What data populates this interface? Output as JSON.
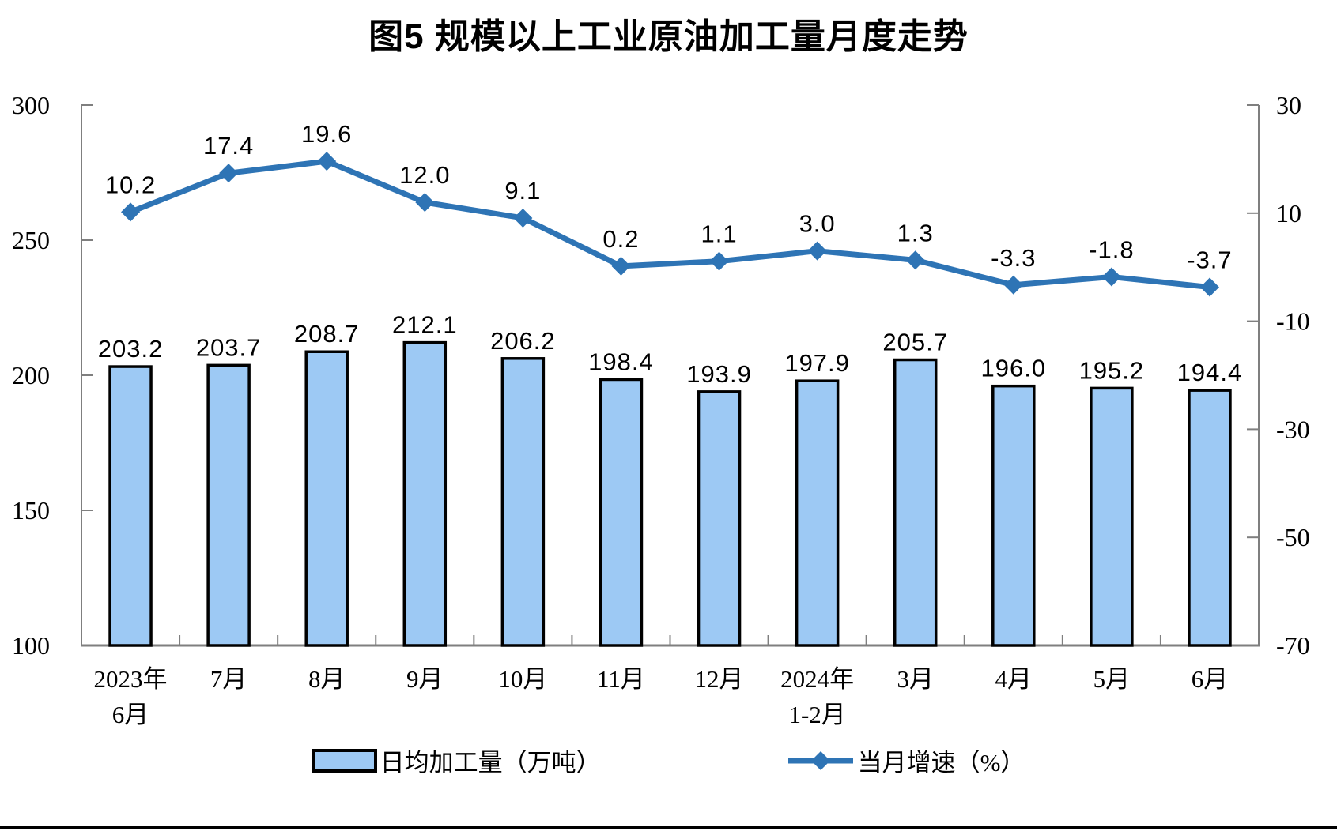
{
  "chart_data": {
    "type": "bar",
    "title": "图5  规模以上工业原油加工量月度走势",
    "categories": [
      {
        "line1": "2023年",
        "line2": "6月"
      },
      {
        "line1": "7月"
      },
      {
        "line1": "8月"
      },
      {
        "line1": "9月"
      },
      {
        "line1": "10月"
      },
      {
        "line1": "11月"
      },
      {
        "line1": "12月"
      },
      {
        "line1": "2024年",
        "line2": "1-2月"
      },
      {
        "line1": "3月"
      },
      {
        "line1": "4月"
      },
      {
        "line1": "5月"
      },
      {
        "line1": "6月"
      }
    ],
    "series": [
      {
        "name": "日均加工量（万吨）",
        "kind": "bar",
        "axis": "left",
        "values": [
          203.2,
          203.7,
          208.7,
          212.1,
          206.2,
          198.4,
          193.9,
          197.9,
          205.7,
          196.0,
          195.2,
          194.4
        ]
      },
      {
        "name": "当月增速（%）",
        "kind": "line",
        "axis": "right",
        "values": [
          10.2,
          17.4,
          19.6,
          12.0,
          9.1,
          0.2,
          1.1,
          3.0,
          1.3,
          -3.3,
          -1.8,
          -3.7
        ]
      }
    ],
    "left_axis": {
      "min": 100,
      "max": 300,
      "ticks": [
        300,
        250,
        200,
        150,
        100
      ]
    },
    "right_axis": {
      "min": -70,
      "max": 30,
      "ticks": [
        30,
        10,
        -10,
        -30,
        -50,
        -70
      ]
    },
    "grid": false,
    "legend_position": "bottom",
    "colors": {
      "bar_fill": "#9DC9F4",
      "bar_stroke": "#000000",
      "line": "#2E74B5",
      "axis": "#7F7F7F",
      "text": "#000000"
    }
  }
}
